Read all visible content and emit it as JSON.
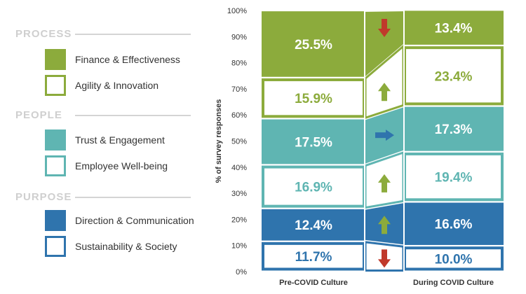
{
  "legend": {
    "groups": [
      {
        "title": "PROCESS",
        "items": [
          {
            "label": "Finance & Effectiveness",
            "style": "filled",
            "color": "#8cab3c"
          },
          {
            "label": "Agility & Innovation",
            "style": "outline",
            "color": "#8cab3c"
          }
        ]
      },
      {
        "title": "PEOPLE",
        "items": [
          {
            "label": "Trust & Engagement",
            "style": "filled",
            "color": "#5fb5b2"
          },
          {
            "label": "Employee Well-being",
            "style": "outline",
            "color": "#5fb5b2"
          }
        ]
      },
      {
        "title": "PURPOSE",
        "items": [
          {
            "label": "Direction & Communication",
            "style": "filled",
            "color": "#2f74ad"
          },
          {
            "label": "Sustainability & Society",
            "style": "outline",
            "color": "#2f74ad"
          }
        ]
      }
    ]
  },
  "chart_data": {
    "type": "bar",
    "stacked": true,
    "ylabel": "% of survey responses",
    "ylim": [
      0,
      100
    ],
    "yticks": [
      "0%",
      "10%",
      "20%",
      "30%",
      "40%",
      "50%",
      "60%",
      "70%",
      "80%",
      "90%",
      "100%"
    ],
    "categories": [
      "Pre-COVID Culture",
      "During COVID Culture"
    ],
    "series": [
      {
        "name": "Sustainability & Society",
        "style": "outline",
        "color": "#2f74ad",
        "values": [
          11.7,
          10.0
        ],
        "labels": [
          "11.7%",
          "10.0%"
        ],
        "trend": "down",
        "trend_color": "#c0392b"
      },
      {
        "name": "Direction & Communication",
        "style": "filled",
        "color": "#2f74ad",
        "values": [
          12.4,
          16.6
        ],
        "labels": [
          "12.4%",
          "16.6%"
        ],
        "trend": "up",
        "trend_color": "#8cab3c"
      },
      {
        "name": "Employee Well-being",
        "style": "outline",
        "color": "#5fb5b2",
        "values": [
          16.9,
          19.4
        ],
        "labels": [
          "16.9%",
          "19.4%"
        ],
        "trend": "up",
        "trend_color": "#8cab3c"
      },
      {
        "name": "Trust & Engagement",
        "style": "filled",
        "color": "#5fb5b2",
        "values": [
          17.5,
          17.3
        ],
        "labels": [
          "17.5%",
          "17.3%"
        ],
        "trend": "right",
        "trend_color": "#2f74ad"
      },
      {
        "name": "Agility & Innovation",
        "style": "outline",
        "color": "#8cab3c",
        "values": [
          15.9,
          23.4
        ],
        "labels": [
          "15.9%",
          "23.4%"
        ],
        "trend": "up",
        "trend_color": "#8cab3c"
      },
      {
        "name": "Finance & Effectiveness",
        "style": "filled",
        "color": "#8cab3c",
        "values": [
          25.5,
          13.4
        ],
        "labels": [
          "25.5%",
          "13.4%"
        ],
        "trend": "down",
        "trend_color": "#c0392b"
      }
    ]
  }
}
